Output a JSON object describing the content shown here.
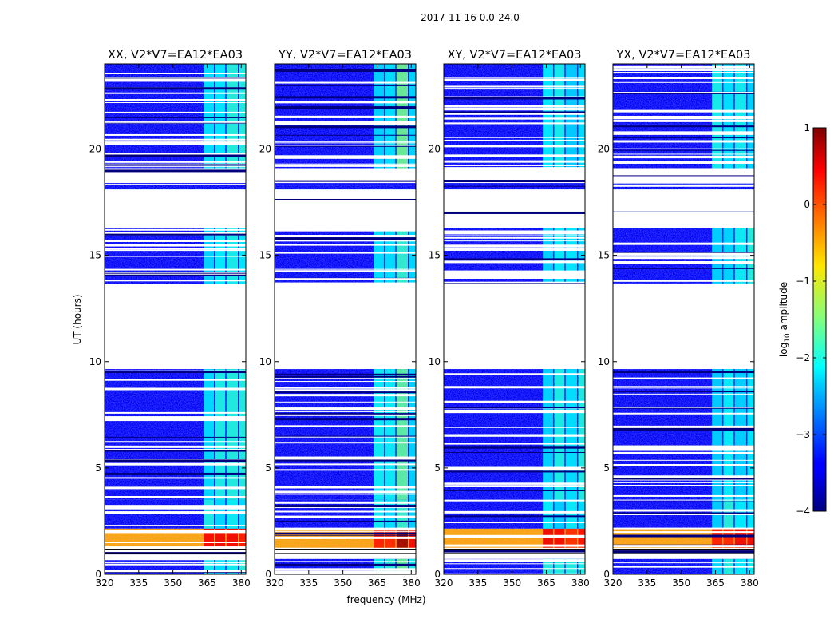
{
  "chart_data": {
    "type": "heatmap",
    "suptitle": "2017-11-16 0.0-24.0",
    "xlabel": "frequency (MHz)",
    "ylabel": "UT (hours)",
    "xlim": [
      320,
      382
    ],
    "ylim": [
      0,
      24
    ],
    "xticks": [
      320,
      335,
      350,
      365,
      380
    ],
    "yticks": [
      0,
      5,
      10,
      15,
      20
    ],
    "colorbar": {
      "label_prefix": "log",
      "label_sub": "10",
      "label_suffix": " amplitude",
      "range": [
        -4,
        1
      ],
      "ticks": [
        -4,
        -3,
        -2,
        -1,
        0,
        1
      ],
      "tick_labels": [
        "−4",
        "−3",
        "−2",
        "−1",
        "0",
        "1"
      ],
      "colormap": "jet"
    },
    "panels": [
      {
        "title": "XX, V2*V7=EA12*EA03",
        "pol": "XX"
      },
      {
        "title": "YY, V2*V7=EA12*EA03",
        "pol": "YY"
      },
      {
        "title": "XY, V2*V7=EA12*EA03",
        "pol": "XY"
      },
      {
        "title": "YX, V2*V7=EA12*EA03",
        "pol": "YX"
      }
    ],
    "rfi_bands_mhz": [
      [
        363.5,
        368.0
      ],
      [
        368.5,
        373.0
      ],
      [
        373.5,
        378.5
      ],
      [
        379.0,
        382.0
      ]
    ],
    "data_blocks_ut": [
      {
        "from": 0.0,
        "to": 0.72,
        "level": -3.4
      },
      {
        "from": 1.25,
        "to": 2.15,
        "level": -0.4
      },
      {
        "from": 2.15,
        "to": 3.5,
        "level": -3.4
      },
      {
        "from": 3.5,
        "to": 9.65,
        "level": -3.4
      },
      {
        "from": 13.65,
        "to": 16.3,
        "level": -3.4
      },
      {
        "from": 18.1,
        "to": 18.4,
        "level": -3.4
      },
      {
        "from": 19.1,
        "to": 24.0,
        "level": -3.4
      }
    ]
  }
}
